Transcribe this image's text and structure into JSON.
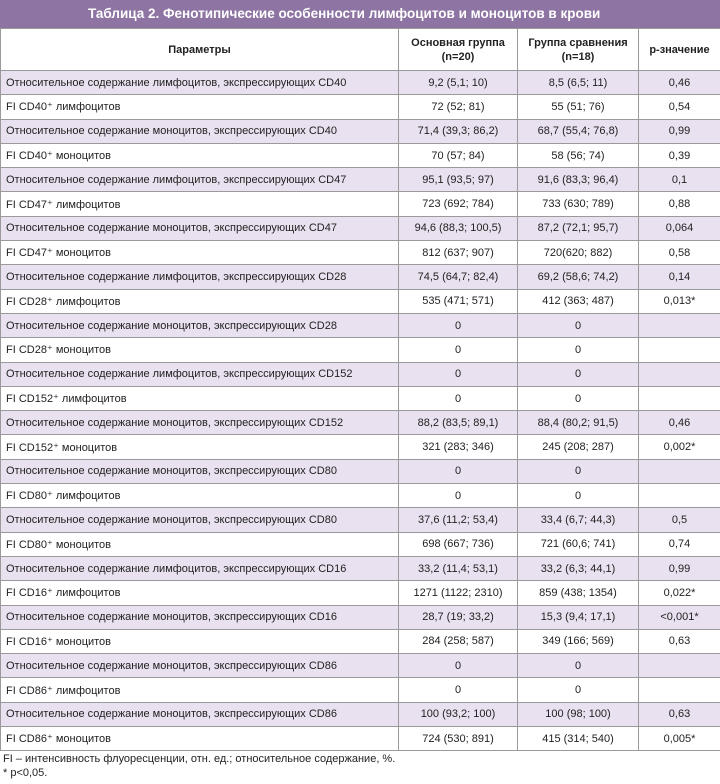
{
  "title": "Таблица 2. Фенотипические особенности лимфоцитов и моноцитов в крови",
  "table": {
    "header": [
      [
        "Параметры"
      ],
      [
        "Основная группа",
        "(n=20)"
      ],
      [
        "Группа сравнения",
        "(n=18)"
      ],
      [
        "p-значение"
      ]
    ],
    "rows": [
      [
        "Относительное содержание лимфоцитов, экспрессирующих CD40",
        "9,2 (5,1; 10)",
        "8,5 (6,5; 11)",
        "0,46"
      ],
      [
        "FI CD40⁺ лимфоцитов",
        "72 (52; 81)",
        "55 (51; 76)",
        "0,54"
      ],
      [
        "Относительное содержание моноцитов, экспрессирующих CD40",
        "71,4 (39,3; 86,2)",
        "68,7 (55,4; 76,8)",
        "0,99"
      ],
      [
        "FI CD40⁺ моноцитов",
        "70 (57; 84)",
        "58 (56; 74)",
        "0,39"
      ],
      [
        "Относительное содержание лимфоцитов, экспрессирующих CD47",
        "95,1 (93,5; 97)",
        "91,6 (83,3; 96,4)",
        "0,1"
      ],
      [
        "FI CD47⁺ лимфоцитов",
        "723 (692; 784)",
        "733 (630; 789)",
        "0,88"
      ],
      [
        "Относительное содержание моноцитов, экспрессирующих CD47",
        "94,6 (88,3; 100,5)",
        "87,2 (72,1; 95,7)",
        "0,064"
      ],
      [
        "FI CD47⁺ моноцитов",
        "812 (637; 907)",
        "720(620; 882)",
        "0,58"
      ],
      [
        "Относительное содержание лимфоцитов, экспрессирующих CD28",
        "74,5 (64,7; 82,4)",
        "69,2 (58,6; 74,2)",
        "0,14"
      ],
      [
        "FI CD28⁺ лимфоцитов",
        "535 (471; 571)",
        "412 (363; 487)",
        "0,013*"
      ],
      [
        "Относительное содержание моноцитов, экспрессирующих CD28",
        "0",
        "0",
        null
      ],
      [
        "FI CD28⁺ моноцитов",
        "0",
        "0",
        null
      ],
      [
        "Относительное содержание лимфоцитов, экспрессирующих CD152",
        "0",
        "0",
        null
      ],
      [
        "FI CD152⁺ лимфоцитов",
        "0",
        "0",
        null
      ],
      [
        "Относительное содержание моноцитов, экспрессирующих CD152",
        "88,2 (83,5; 89,1)",
        "88,4 (80,2; 91,5)",
        "0,46"
      ],
      [
        "FI CD152⁺ моноцитов",
        "321 (283; 346)",
        "245 (208; 287)",
        "0,002*"
      ],
      [
        "Относительное содержание моноцитов, экспрессирующих CD80",
        "0",
        "0",
        null
      ],
      [
        "FI CD80⁺ лимфоцитов",
        "0",
        "0",
        null
      ],
      [
        "Относительное содержание моноцитов, экспрессирующих CD80",
        "37,6 (11,2; 53,4)",
        "33,4 (6,7; 44,3)",
        "0,5"
      ],
      [
        "FI CD80⁺ моноцитов",
        "698 (667; 736)",
        "721 (60,6; 741)",
        "0,74"
      ],
      [
        "Относительное содержание лимфоцитов, экспрессирующих CD16",
        "33,2 (11,4; 53,1)",
        "33,2 (6,3; 44,1)",
        "0,99"
      ],
      [
        "FI CD16⁺ лимфоцитов",
        "1271 (1122; 2310)",
        "859 (438; 1354)",
        "0,022*"
      ],
      [
        "Относительное содержание моноцитов, экспрессирующих CD16",
        "28,7 (19; 33,2)",
        "15,3 (9,4; 17,1)",
        "<0,001*"
      ],
      [
        "FI CD16⁺ моноцитов",
        "284 (258; 587)",
        "349 (166; 569)",
        "0,63"
      ],
      [
        "Относительное содержание моноцитов, экспрессирующих CD86",
        "0",
        "0",
        null
      ],
      [
        "FI CD86⁺ лимфоцитов",
        "0",
        "0",
        null
      ],
      [
        "Относительное содержание моноцитов, экспрессирующих CD86",
        "100 (93,2; 100)",
        "100 (98; 100)",
        "0,63"
      ],
      [
        "FI CD86⁺ моноцитов",
        "724 (530; 891)",
        "415 (314; 540)",
        "0,005*"
      ]
    ]
  },
  "footnotes": [
    "FI – интенсивность флуоресценции, отн. ед.;  относительное содержание, %.",
    "* p<0,05."
  ]
}
